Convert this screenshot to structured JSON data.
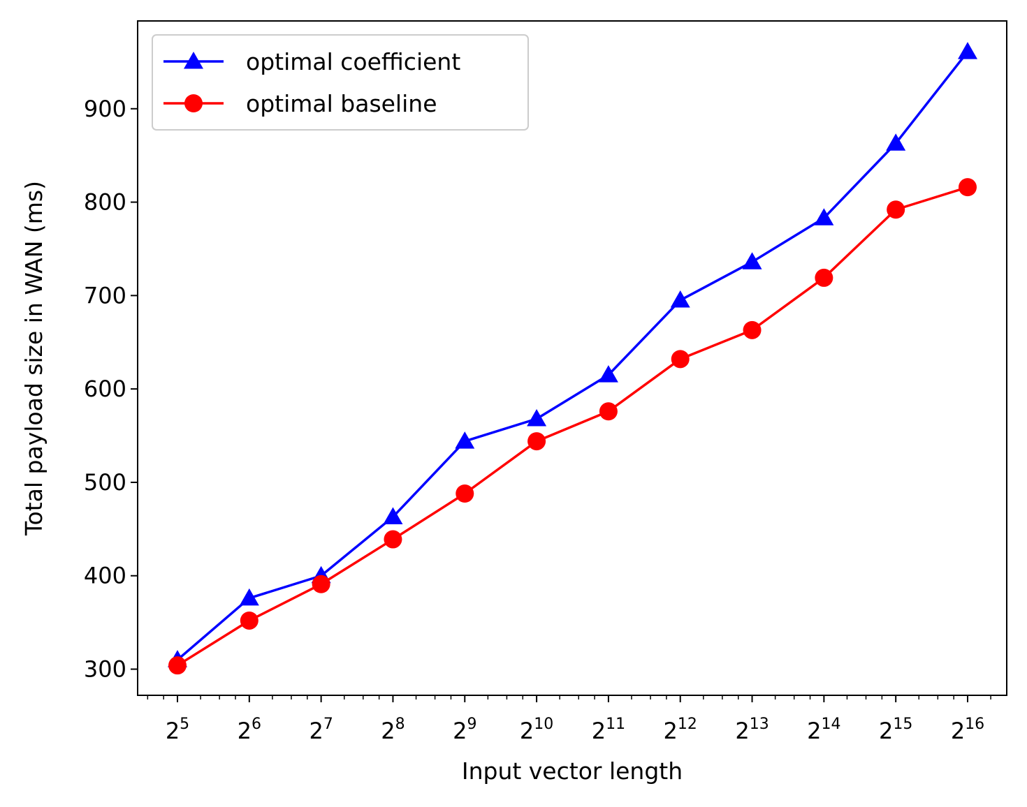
{
  "chart_data": {
    "type": "line",
    "xlabel": "Input vector length",
    "ylabel": "Total payload size in WAN (ms)",
    "x_scale": "log2",
    "x": [
      32,
      64,
      128,
      256,
      512,
      1024,
      2048,
      4096,
      8192,
      16384,
      32768,
      65536
    ],
    "x_ticks": [
      {
        "base": "2",
        "exp": "5"
      },
      {
        "base": "2",
        "exp": "6"
      },
      {
        "base": "2",
        "exp": "7"
      },
      {
        "base": "2",
        "exp": "8"
      },
      {
        "base": "2",
        "exp": "9"
      },
      {
        "base": "2",
        "exp": "10"
      },
      {
        "base": "2",
        "exp": "11"
      },
      {
        "base": "2",
        "exp": "12"
      },
      {
        "base": "2",
        "exp": "13"
      },
      {
        "base": "2",
        "exp": "14"
      },
      {
        "base": "2",
        "exp": "15"
      },
      {
        "base": "2",
        "exp": "16"
      }
    ],
    "ylim": [
      272,
      994
    ],
    "y_ticks": [
      300,
      400,
      500,
      600,
      700,
      800,
      900
    ],
    "legend_position": "top-left",
    "grid": false,
    "series": [
      {
        "name": "optimal coefficient",
        "color": "#0000ff",
        "marker": "triangle",
        "values": [
          310,
          376,
          400,
          463,
          544,
          568,
          615,
          695,
          736,
          783,
          863,
          961
        ]
      },
      {
        "name": "optimal baseline",
        "color": "#ff0000",
        "marker": "circle",
        "values": [
          304,
          352,
          391,
          439,
          488,
          544,
          576,
          632,
          663,
          719,
          792,
          816
        ]
      }
    ]
  }
}
